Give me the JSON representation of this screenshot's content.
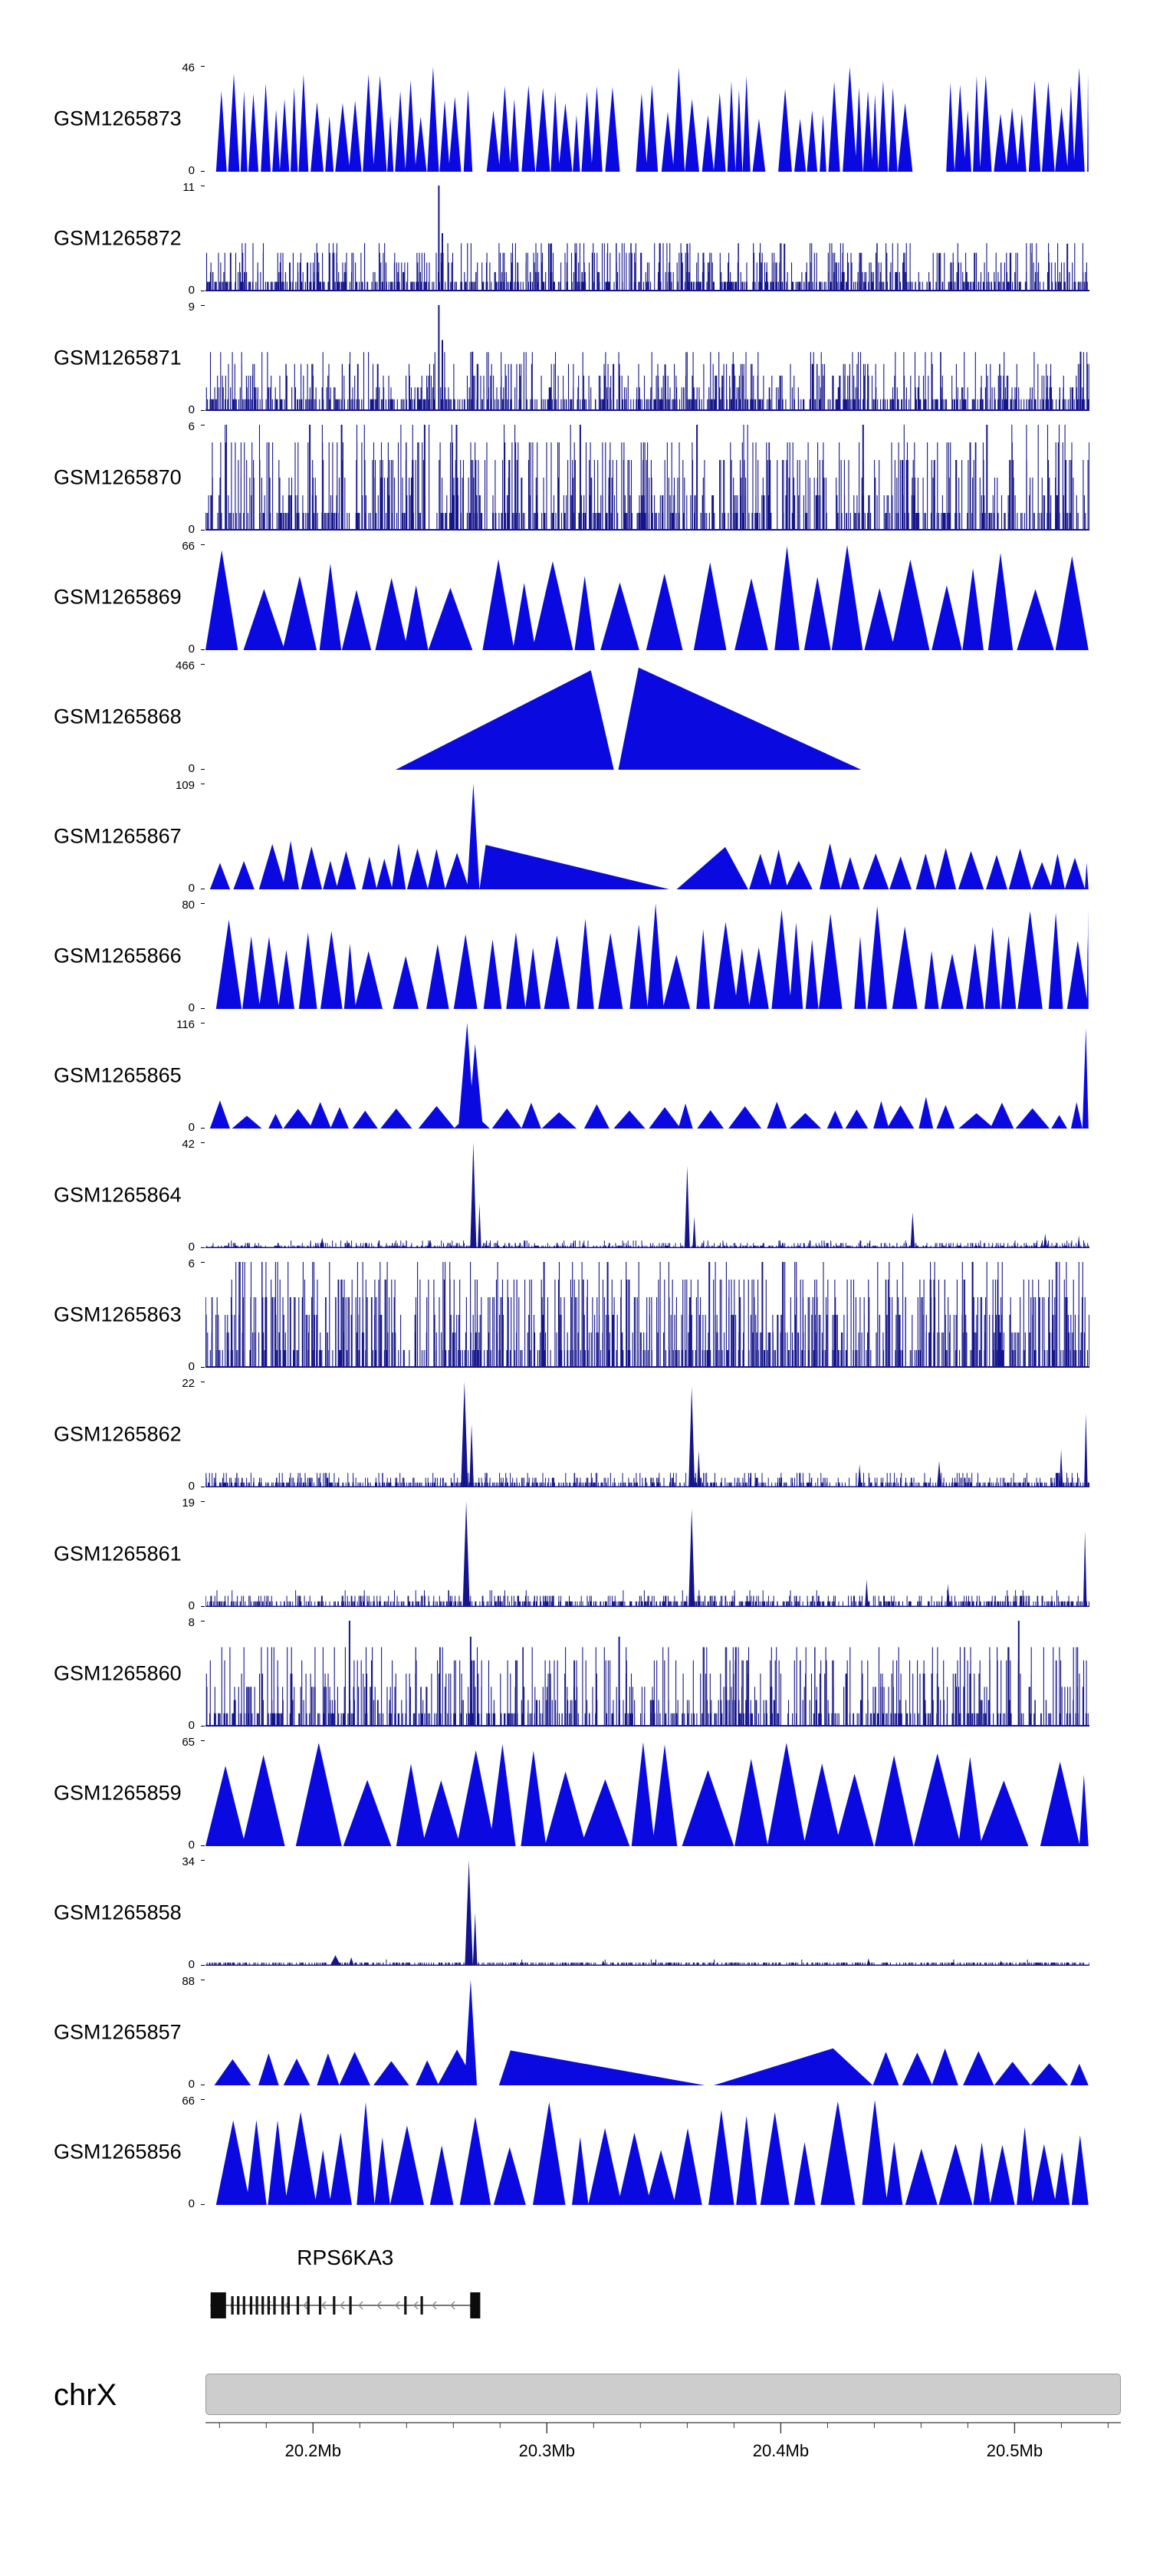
{
  "chromosome": {
    "label": "chrX"
  },
  "gene": {
    "name": "RPS6KA3",
    "strand": "-",
    "start_mb": 20.156,
    "end_mb": 20.2715,
    "tall_exons_mb": [
      [
        20.1562,
        20.1628
      ],
      [
        20.2672,
        20.2715
      ]
    ],
    "exon_ticks_mb": [
      20.1655,
      20.168,
      20.1705,
      20.1735,
      20.176,
      20.1785,
      20.181,
      20.1835,
      20.187,
      20.1895,
      20.1935,
      20.198,
      20.203,
      20.209,
      20.216,
      20.2395,
      20.2465
    ]
  },
  "chart_data": {
    "type": "area",
    "x_axis": {
      "chromosome": "chrX",
      "unit": "Mb",
      "range_mb": [
        20.154,
        20.532
      ],
      "major_ticks_mb": [
        20.2,
        20.3,
        20.4,
        20.5
      ],
      "tick_labels": [
        "20.2Mb",
        "20.3Mb",
        "20.4Mb",
        "20.5Mb"
      ],
      "minor_tick_step_mb": 0.02
    },
    "tracks": [
      {
        "id": "GSM1265873",
        "ymax": 46,
        "ymin": 0,
        "style": "triangles",
        "color": "#0a0ae0",
        "seed": 11,
        "x0": 0.012,
        "x1": 0.999,
        "wmin": 0.007,
        "wmax": 0.017,
        "hmin": 0.5,
        "hmax": 1.0,
        "gaps": [
          [
            0.3,
            0.318
          ],
          [
            0.468,
            0.487
          ],
          [
            0.632,
            0.648
          ],
          [
            0.795,
            0.838
          ]
        ]
      },
      {
        "id": "GSM1265872",
        "ymax": 11,
        "ymin": 0,
        "style": "bars",
        "color": "#14148c",
        "seed": 22,
        "n": 950,
        "hpow": 2.2,
        "hscale": 0.5,
        "features": [
          {
            "x": 0.264,
            "h": 1.0
          },
          {
            "x": 0.268,
            "h": 0.55
          },
          {
            "x": 0.39,
            "h": 0.45
          },
          {
            "x": 0.545,
            "h": 0.45
          },
          {
            "x": 0.655,
            "h": 0.45
          },
          {
            "x": 0.83,
            "h": 0.36
          },
          {
            "x": 0.975,
            "h": 0.45
          }
        ]
      },
      {
        "id": "GSM1265871",
        "ymax": 9,
        "ymin": 0,
        "style": "bars",
        "color": "#14148c",
        "seed": 33,
        "n": 950,
        "hpow": 2.2,
        "hscale": 0.55,
        "features": [
          {
            "x": 0.264,
            "h": 1.0
          },
          {
            "x": 0.268,
            "h": 0.67
          },
          {
            "x": 0.302,
            "h": 0.56
          },
          {
            "x": 0.52,
            "h": 0.44
          },
          {
            "x": 0.99,
            "h": 0.56
          }
        ]
      },
      {
        "id": "GSM1265870",
        "ymax": 6,
        "ymin": 0,
        "style": "bars",
        "color": "#14148c",
        "seed": 44,
        "n": 820,
        "hpow": 1.5,
        "hscale": 0.95,
        "features": [
          {
            "x": 0.118,
            "h": 1
          },
          {
            "x": 0.154,
            "h": 1
          },
          {
            "x": 0.248,
            "h": 1
          },
          {
            "x": 0.284,
            "h": 1
          },
          {
            "x": 0.424,
            "h": 1
          },
          {
            "x": 0.556,
            "h": 1
          },
          {
            "x": 0.744,
            "h": 1
          },
          {
            "x": 0.884,
            "h": 1
          }
        ]
      },
      {
        "id": "GSM1265869",
        "ymax": 66,
        "ymin": 0,
        "style": "triangles",
        "color": "#0a0ae0",
        "seed": 55,
        "x0": 0.0,
        "x1": 0.999,
        "wmin": 0.022,
        "wmax": 0.055,
        "hmin": 0.55,
        "hmax": 1.0,
        "gaps": [
          [
            0.512,
            0.552
          ]
        ]
      },
      {
        "id": "GSM1265868",
        "ymax": 466,
        "ymin": 0,
        "style": "custom",
        "color": "#0a0ae0",
        "seed": 66,
        "shapes": [
          {
            "pts": [
              [
                0.215,
                0
              ],
              [
                0.436,
                0.94
              ],
              [
                0.462,
                0
              ]
            ]
          },
          {
            "pts": [
              [
                0.467,
                0
              ],
              [
                0.49,
                0.965
              ],
              [
                0.742,
                0
              ]
            ]
          }
        ]
      },
      {
        "id": "GSM1265867",
        "ymax": 109,
        "ymin": 0,
        "style": "triangles",
        "color": "#0a0ae0",
        "seed": 77,
        "x0": 0.005,
        "x1": 0.999,
        "wmin": 0.016,
        "wmax": 0.032,
        "hmin": 0.24,
        "hmax": 0.48,
        "gaps": [
          [
            0.286,
            0.615
          ]
        ],
        "shapes": [
          {
            "pts": [
              [
                0.296,
                0
              ],
              [
                0.303,
                1.0
              ],
              [
                0.31,
                0
              ]
            ]
          },
          {
            "pts": [
              [
                0.31,
                0
              ],
              [
                0.317,
                0.42
              ],
              [
                0.525,
                0
              ]
            ]
          },
          {
            "pts": [
              [
                0.533,
                0
              ],
              [
                0.588,
                0.4
              ],
              [
                0.614,
                0
              ]
            ]
          }
        ]
      },
      {
        "id": "GSM1265866",
        "ymax": 80,
        "ymin": 0,
        "style": "triangles",
        "color": "#0a0ae0",
        "seed": 88,
        "x0": 0.012,
        "x1": 0.999,
        "wmin": 0.013,
        "wmax": 0.032,
        "hmin": 0.5,
        "hmax": 1.0,
        "gaps": [
          [
            0.19,
            0.212
          ],
          [
            0.405,
            0.42
          ],
          [
            0.72,
            0.734
          ]
        ]
      },
      {
        "id": "GSM1265865",
        "ymax": 116,
        "ymin": 0,
        "style": "triangles",
        "color": "#0a0ae0",
        "seed": 99,
        "x0": 0.005,
        "x1": 0.992,
        "wmin": 0.016,
        "wmax": 0.042,
        "hmin": 0.12,
        "hmax": 0.3,
        "gaps": [
          [
            0.286,
            0.318
          ]
        ],
        "shapes": [
          {
            "pts": [
              [
                0.286,
                0
              ],
              [
                0.296,
                1.0
              ],
              [
                0.301,
                0.4
              ],
              [
                0.305,
                0.8
              ],
              [
                0.314,
                0
              ]
            ]
          },
          {
            "pts": [
              [
                0.992,
                0
              ],
              [
                0.996,
                0.95
              ],
              [
                0.999,
                0
              ]
            ]
          }
        ]
      },
      {
        "id": "GSM1265864",
        "ymax": 42,
        "ymin": 0,
        "style": "spikes",
        "color": "#14148c",
        "seed": 110,
        "basen": 760,
        "basemax": 0.07,
        "features": [
          {
            "x": 0.132,
            "h": 0.1,
            "w": 0.005
          },
          {
            "x": 0.303,
            "h": 1.0,
            "w": 0.007
          },
          {
            "x": 0.31,
            "h": 0.42,
            "w": 0.004
          },
          {
            "x": 0.545,
            "h": 0.78,
            "w": 0.006
          },
          {
            "x": 0.553,
            "h": 0.3,
            "w": 0.004
          },
          {
            "x": 0.8,
            "h": 0.34,
            "w": 0.005
          },
          {
            "x": 0.95,
            "h": 0.14,
            "w": 0.004
          },
          {
            "x": 0.988,
            "h": 0.12,
            "w": 0.003
          }
        ]
      },
      {
        "id": "GSM1265863",
        "ymax": 6,
        "ymin": 0,
        "style": "bars",
        "color": "#14148c",
        "seed": 121,
        "n": 880,
        "hpow": 1.2,
        "hscale": 1.0,
        "features": [
          {
            "x": 0.455,
            "h": 1
          },
          {
            "x": 0.57,
            "h": 1
          },
          {
            "x": 0.63,
            "h": 1
          }
        ]
      },
      {
        "id": "GSM1265862",
        "ymax": 22,
        "ymin": 0,
        "style": "spikes",
        "color": "#14148c",
        "seed": 132,
        "basen": 850,
        "basemax": 0.14,
        "features": [
          {
            "x": 0.293,
            "h": 1.0,
            "w": 0.008
          },
          {
            "x": 0.301,
            "h": 0.6,
            "w": 0.005
          },
          {
            "x": 0.55,
            "h": 0.95,
            "w": 0.007
          },
          {
            "x": 0.558,
            "h": 0.35,
            "w": 0.004
          },
          {
            "x": 0.74,
            "h": 0.22,
            "w": 0.004
          },
          {
            "x": 0.83,
            "h": 0.25,
            "w": 0.005
          },
          {
            "x": 0.968,
            "h": 0.36,
            "w": 0.004
          },
          {
            "x": 0.996,
            "h": 0.7,
            "w": 0.004
          }
        ]
      },
      {
        "id": "GSM1265861",
        "ymax": 19,
        "ymin": 0,
        "style": "spikes",
        "color": "#14148c",
        "seed": 143,
        "basen": 850,
        "basemax": 0.14,
        "features": [
          {
            "x": 0.295,
            "h": 1.0,
            "w": 0.008
          },
          {
            "x": 0.55,
            "h": 0.93,
            "w": 0.007
          },
          {
            "x": 0.748,
            "h": 0.26,
            "w": 0.004
          },
          {
            "x": 0.84,
            "h": 0.22,
            "w": 0.004
          },
          {
            "x": 0.995,
            "h": 0.72,
            "w": 0.004
          }
        ]
      },
      {
        "id": "GSM1265860",
        "ymax": 8,
        "ymin": 0,
        "style": "bars",
        "color": "#14148c",
        "seed": 154,
        "n": 800,
        "hpow": 1.7,
        "hscale": 0.8,
        "features": [
          {
            "x": 0.163,
            "h": 1
          },
          {
            "x": 0.3,
            "h": 0.85
          },
          {
            "x": 0.468,
            "h": 0.85
          },
          {
            "x": 0.6,
            "h": 0.75
          },
          {
            "x": 0.92,
            "h": 1
          }
        ]
      },
      {
        "id": "GSM1265859",
        "ymax": 65,
        "ymin": 0,
        "style": "triangles",
        "color": "#0a0ae0",
        "seed": 165,
        "x0": 0.0,
        "x1": 0.999,
        "wmin": 0.026,
        "wmax": 0.06,
        "hmin": 0.6,
        "hmax": 1.0,
        "gaps": []
      },
      {
        "id": "GSM1265858",
        "ymax": 34,
        "ymin": 0,
        "style": "spikes",
        "color": "#14148c",
        "seed": 176,
        "basen": 660,
        "basemax": 0.045,
        "features": [
          {
            "x": 0.147,
            "h": 0.1,
            "w": 0.012
          },
          {
            "x": 0.165,
            "h": 0.08,
            "w": 0.006
          },
          {
            "x": 0.298,
            "h": 1.0,
            "w": 0.009
          },
          {
            "x": 0.305,
            "h": 0.5,
            "w": 0.005
          },
          {
            "x": 0.45,
            "h": 0.05,
            "w": 0.004
          },
          {
            "x": 0.75,
            "h": 0.07,
            "w": 0.004
          },
          {
            "x": 0.9,
            "h": 0.05,
            "w": 0.004
          }
        ]
      },
      {
        "id": "GSM1265857",
        "ymax": 88,
        "ymin": 0,
        "style": "triangles",
        "color": "#0a0ae0",
        "seed": 187,
        "x0": 0.01,
        "x1": 0.999,
        "wmin": 0.02,
        "wmax": 0.045,
        "hmin": 0.2,
        "hmax": 0.36,
        "gaps": [
          [
            0.283,
            0.755
          ]
        ],
        "shapes": [
          {
            "pts": [
              [
                0.286,
                0
              ],
              [
                0.291,
                0.25
              ],
              [
                0.296,
                0
              ]
            ]
          },
          {
            "pts": [
              [
                0.293,
                0
              ],
              [
                0.3,
                1.0
              ],
              [
                0.307,
                0
              ]
            ]
          },
          {
            "pts": [
              [
                0.332,
                0
              ],
              [
                0.345,
                0.33
              ],
              [
                0.565,
                0
              ]
            ]
          },
          {
            "pts": [
              [
                0.575,
                0
              ],
              [
                0.71,
                0.35
              ],
              [
                0.755,
                0
              ]
            ]
          }
        ]
      },
      {
        "id": "GSM1265856",
        "ymax": 66,
        "ymin": 0,
        "style": "triangles",
        "color": "#0a0ae0",
        "seed": 198,
        "x0": 0.012,
        "x1": 0.999,
        "wmin": 0.016,
        "wmax": 0.04,
        "hmin": 0.5,
        "hmax": 1.0,
        "gaps": [
          [
            0.605,
            0.62
          ]
        ]
      }
    ]
  }
}
